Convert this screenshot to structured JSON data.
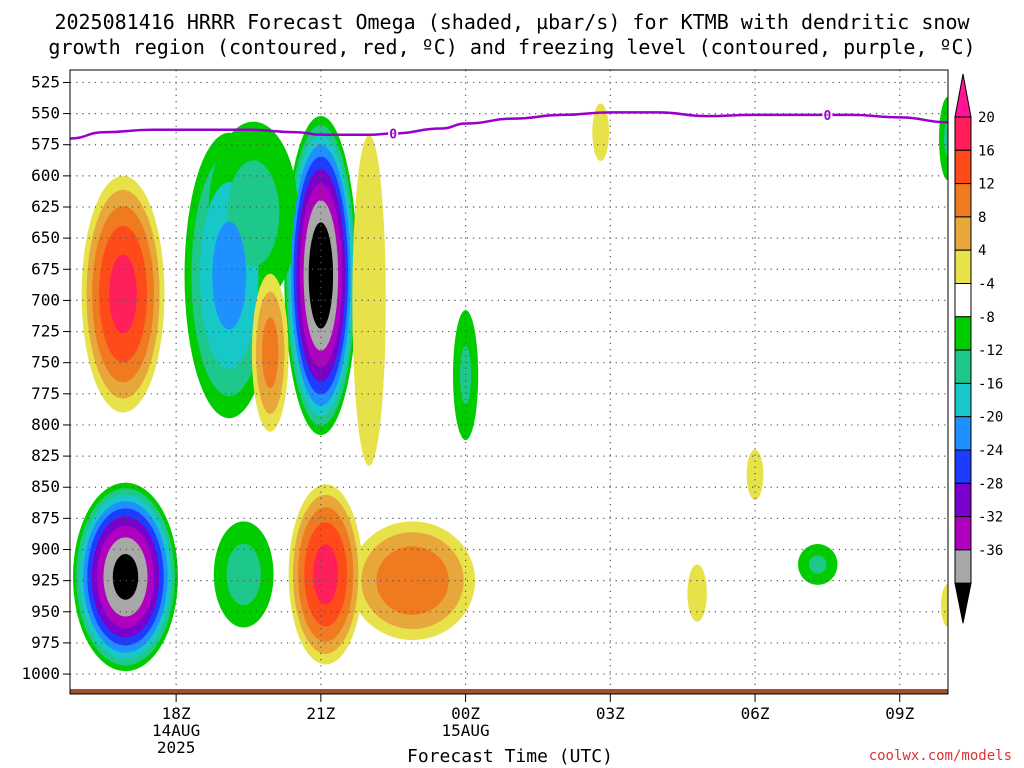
{
  "chart_data": {
    "type": "heatmap",
    "title_lines": [
      "2025081416 HRRR Forecast Omega (shaded, µbar/s) for KTMB with dendritic snow",
      "growth region (contoured, red, ºC) and freezing level (contoured, purple, ºC)"
    ],
    "xlabel": "Forecast Time (UTC)",
    "credit": "coolwx.com/models",
    "y_axis": {
      "scale": "pressure_hPa_inverted",
      "ylim": [
        1012,
        515
      ],
      "ticks": [
        525,
        550,
        575,
        600,
        625,
        650,
        675,
        700,
        725,
        750,
        775,
        800,
        825,
        850,
        875,
        900,
        925,
        950,
        975,
        1000
      ]
    },
    "x_axis": {
      "unit": "hours_since_14AUG_15Z",
      "xlim": [
        0.8,
        19.0
      ],
      "ticks": [
        {
          "x": 3,
          "label": "18Z",
          "sub": [
            "14AUG",
            "2025"
          ]
        },
        {
          "x": 6,
          "label": "21Z",
          "sub": []
        },
        {
          "x": 9,
          "label": "00Z",
          "sub": [
            "15AUG"
          ]
        },
        {
          "x": 12,
          "label": "03Z",
          "sub": []
        },
        {
          "x": 15,
          "label": "06Z",
          "sub": []
        },
        {
          "x": 18,
          "label": "09Z",
          "sub": []
        }
      ]
    },
    "grid": true,
    "colorbar": {
      "position": "right",
      "labels": [
        "20",
        "16",
        "12",
        "8",
        "4",
        "-4",
        "-8",
        "-12",
        "-16",
        "-20",
        "-24",
        "-28",
        "-32",
        "-36"
      ],
      "bins": [
        {
          "hi": 20,
          "color": "#ff1f5a"
        },
        {
          "hi": 16,
          "color": "#ff4a1a"
        },
        {
          "hi": 12,
          "color": "#f07a20"
        },
        {
          "hi": 8,
          "color": "#e8a73a"
        },
        {
          "hi": 4,
          "color": "#e8e24a"
        },
        {
          "hi": -4,
          "color": "#ffffff"
        },
        {
          "hi": -8,
          "color": "#00cc00"
        },
        {
          "hi": -12,
          "color": "#1ec88a"
        },
        {
          "hi": -16,
          "color": "#18c8c8"
        },
        {
          "hi": -20,
          "color": "#1e90ff"
        },
        {
          "hi": -24,
          "color": "#1e3cff"
        },
        {
          "hi": -28,
          "color": "#7a00cc"
        },
        {
          "hi": -32,
          "color": "#b000c0"
        },
        {
          "hi": -36,
          "color": "#a8a8a8"
        }
      ],
      "top_color": "#ff1493",
      "bottom_color": "#000000"
    },
    "omega_features": [
      {
        "label": "descent-1730Z-700",
        "x": 1.9,
        "p": 695,
        "rx": 0.95,
        "rp": 105,
        "peak": 22
      },
      {
        "label": "ascent-1730Z-920",
        "x": 1.95,
        "p": 922,
        "rx": 1.15,
        "rp": 80,
        "peak": -38
      },
      {
        "label": "ascent-2030Z-680",
        "x": 4.1,
        "p": 680,
        "rx": 1.05,
        "rp": 130,
        "peak": -18
      },
      {
        "label": "ascent-19Z-620",
        "x": 4.6,
        "p": 630,
        "rx": 1.2,
        "rp": 95,
        "peak": -10
      },
      {
        "label": "descent-20Z-740",
        "x": 4.95,
        "p": 742,
        "rx": 0.45,
        "rp": 75,
        "peak": 14
      },
      {
        "label": "ascent-21Z-680",
        "x": 6.0,
        "p": 680,
        "rx": 0.8,
        "rp": 135,
        "peak": -40
      },
      {
        "label": "ascent-1930Z-920",
        "x": 4.4,
        "p": 920,
        "rx": 0.8,
        "rp": 55,
        "peak": -10
      },
      {
        "label": "descent-21Z-920",
        "x": 6.1,
        "p": 920,
        "rx": 0.85,
        "rp": 80,
        "peak": 22
      },
      {
        "label": "descent-2330Z-925",
        "x": 7.9,
        "p": 925,
        "rx": 1.5,
        "rp": 55,
        "peak": 16
      },
      {
        "label": "descent-22Z-700",
        "x": 7.0,
        "p": 700,
        "rx": 0.6,
        "rp": 230,
        "peak": 6
      },
      {
        "label": "ascent-00Z-760",
        "x": 9.0,
        "p": 760,
        "rx": 0.35,
        "rp": 70,
        "peak": -9
      },
      {
        "label": "descent-0130Z-560",
        "x": 11.8,
        "p": 565,
        "rx": 0.3,
        "rp": 40,
        "peak": 6
      },
      {
        "label": "descent-0430Z-935",
        "x": 13.8,
        "p": 935,
        "rx": 0.35,
        "rp": 40,
        "peak": 6
      },
      {
        "label": "descent-06Z-835",
        "x": 15.0,
        "p": 840,
        "rx": 0.3,
        "rp": 35,
        "peak": 6
      },
      {
        "label": "ascent-0630Z-910",
        "x": 16.3,
        "p": 912,
        "rx": 0.55,
        "rp": 22,
        "peak": -9
      },
      {
        "label": "descent-09Z-945",
        "x": 19.0,
        "p": 945,
        "rx": 0.25,
        "rp": 30,
        "peak": 6
      },
      {
        "label": "ascent-10Z-580",
        "x": 19.0,
        "p": 570,
        "rx": 0.25,
        "rp": 45,
        "peak": -9
      }
    ],
    "freezing_level_0C": {
      "contour_label": "0",
      "x": [
        0.8,
        1.5,
        2.5,
        3.5,
        4.5,
        5.5,
        6.0,
        7.0,
        7.5,
        8.5,
        9.0,
        10.0,
        11.0,
        12.0,
        13.0,
        14.0,
        15.0,
        16.0,
        17.0,
        18.0,
        19.0
      ],
      "p": [
        570,
        565,
        563,
        563,
        563,
        565,
        567,
        567,
        566,
        562,
        558,
        554,
        551,
        549,
        549,
        552,
        551,
        551,
        551,
        553,
        557
      ],
      "label_x": [
        7.5,
        16.5
      ]
    }
  }
}
